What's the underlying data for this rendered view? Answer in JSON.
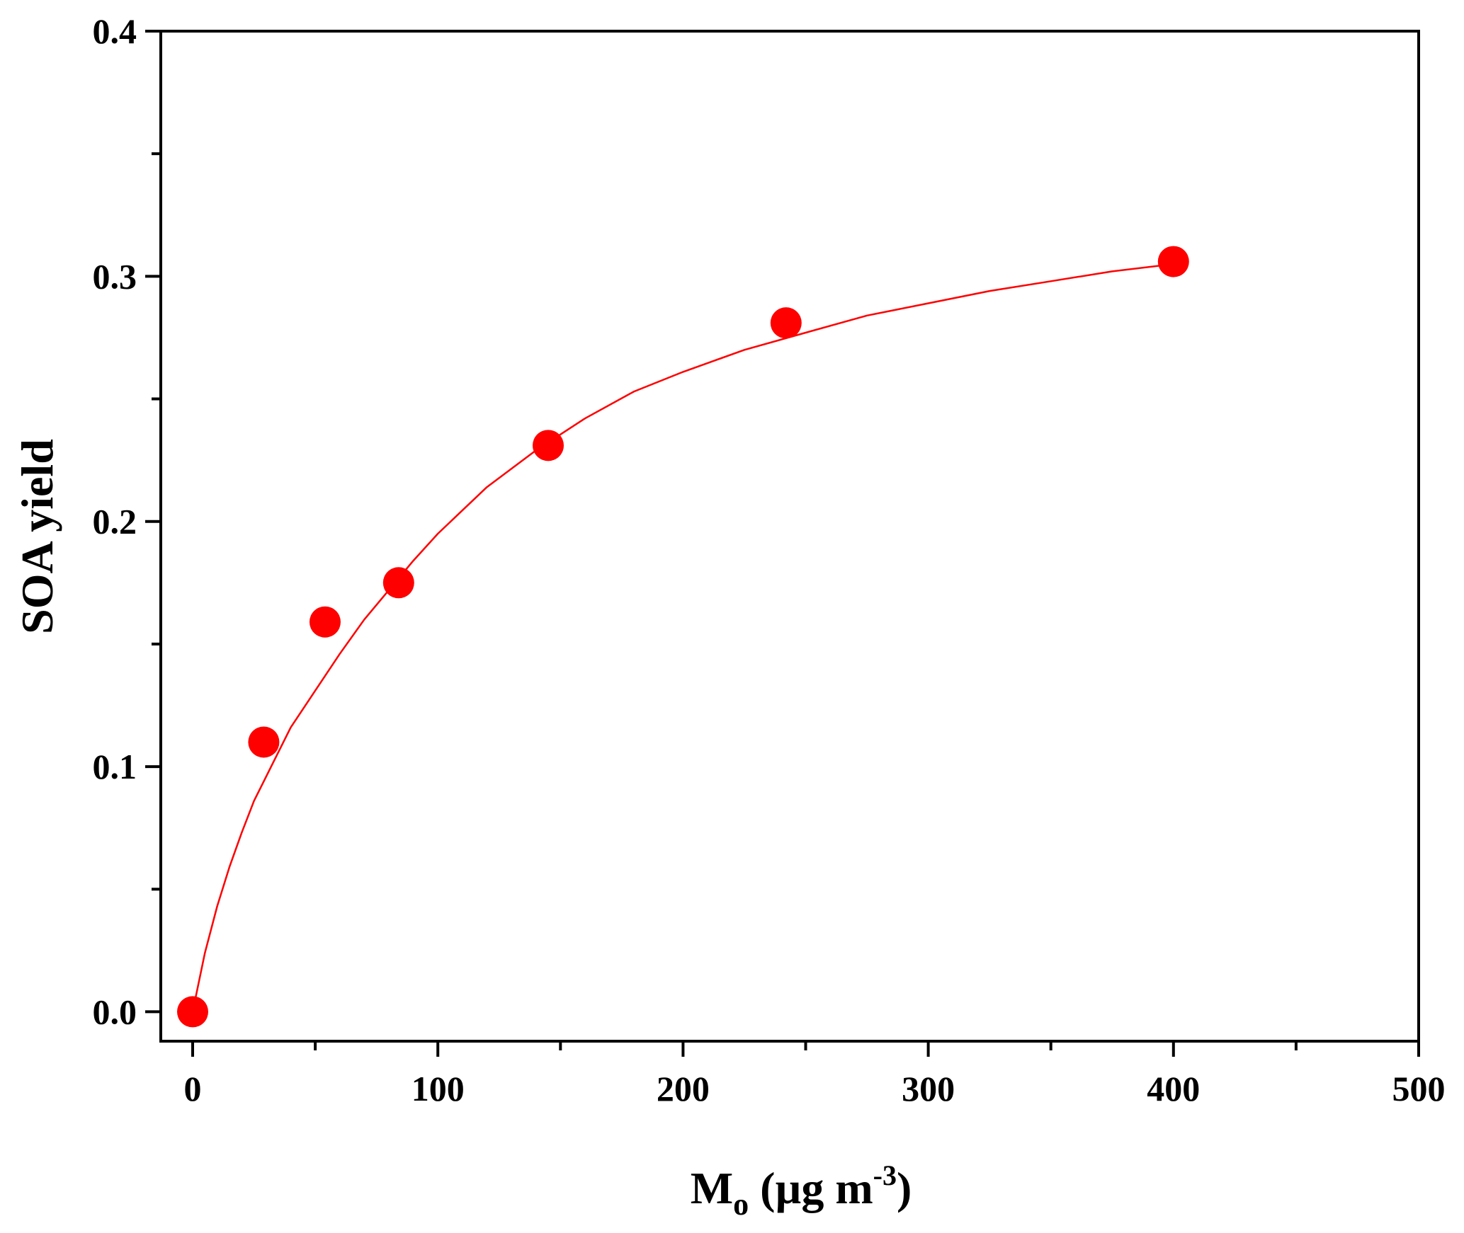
{
  "chart_data": {
    "type": "scatter",
    "title": "",
    "xlabel": "M",
    "xlabel_subscript": "o",
    "xlabel_unit_prefix": " (µg m",
    "xlabel_unit_superscript": "-3",
    "xlabel_unit_suffix": ")",
    "ylabel": "SOA yield",
    "xlim": [
      -13,
      500
    ],
    "ylim": [
      -0.012,
      0.4
    ],
    "x_major_ticks": [
      0,
      100,
      200,
      300,
      400,
      500
    ],
    "x_tick_labels": [
      "0",
      "100",
      "200",
      "300",
      "400",
      "500"
    ],
    "x_minor_ticks": [
      50,
      150,
      250,
      350,
      450
    ],
    "y_major_ticks": [
      0.0,
      0.1,
      0.2,
      0.3,
      0.4
    ],
    "y_tick_labels": [
      "0.0",
      "0.1",
      "0.2",
      "0.3",
      "0.4"
    ],
    "y_minor_ticks": [
      0.05,
      0.15,
      0.25,
      0.35
    ],
    "grid": false,
    "legend": "none",
    "series": [
      {
        "kind": "points",
        "color": "#ff0000",
        "x": [
          0,
          29,
          54,
          84,
          145,
          242,
          400
        ],
        "y": [
          0.0,
          0.11,
          0.159,
          0.175,
          0.231,
          0.281,
          0.306
        ]
      },
      {
        "kind": "fit-line",
        "color": "#ff0000",
        "x": [
          0,
          5,
          10,
          15,
          20,
          25,
          30,
          40,
          50,
          60,
          70,
          80,
          90,
          100,
          120,
          140,
          160,
          180,
          200,
          225,
          250,
          275,
          300,
          325,
          350,
          375,
          400
        ],
        "y": [
          0.0,
          0.024,
          0.043,
          0.059,
          0.073,
          0.086,
          0.096,
          0.116,
          0.131,
          0.146,
          0.16,
          0.172,
          0.184,
          0.195,
          0.214,
          0.229,
          0.242,
          0.253,
          0.261,
          0.27,
          0.277,
          0.284,
          0.289,
          0.294,
          0.298,
          0.302,
          0.305
        ]
      }
    ]
  }
}
